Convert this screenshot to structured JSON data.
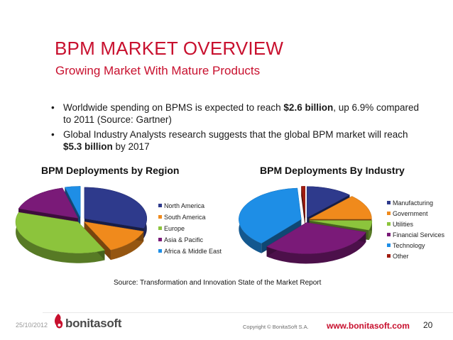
{
  "slide": {
    "title": "BPM MARKET OVERVIEW",
    "subtitle": "Growing Market With Mature Products",
    "bullets": [
      {
        "before": "Worldwide spending on BPMS is expected to reach ",
        "bold": "$2.6 billion",
        "after": ", up 6.9% compared to 2011 (Source: Gartner)"
      },
      {
        "before": "Global Industry Analysts research suggests that the global BPM market will reach ",
        "bold": "$5.3 billion",
        "after": " by 2017"
      }
    ],
    "bullet_glyph": "•",
    "source_note": "Source: Transformation and Innovation State of the Market Report"
  },
  "footer": {
    "date": "25/10/2012",
    "logo_text": "bonitasoft",
    "copyright": "Copyright © BonitaSoft S.A.",
    "website": "www.bonitasoft.com",
    "page_number": "20"
  },
  "colors": {
    "accent": "#c8102e",
    "north_america": "#2e3a8c",
    "south_america": "#f08a1c",
    "europe": "#8cc43c",
    "asia_pacific": "#7a1a78",
    "africa_middle_east": "#1e8ee6",
    "manufacturing": "#2e3a8c",
    "government": "#f08a1c",
    "utilities": "#8cc43c",
    "financial_services": "#7a1a78",
    "technology": "#1e8ee6",
    "other": "#a01c10"
  },
  "chart_data": [
    {
      "type": "pie",
      "title": "BPM Deployments by Region",
      "categories": [
        "North America",
        "South America",
        "Europe",
        "Asia & Pacific",
        "Africa & Middle East"
      ],
      "values": [
        30,
        13,
        37,
        16,
        4
      ],
      "colors": [
        "#2e3a8c",
        "#f08a1c",
        "#8cc43c",
        "#7a1a78",
        "#1e8ee6"
      ],
      "legend": "right"
    },
    {
      "type": "pie",
      "title": "BPM Deployments By Industry",
      "categories": [
        "Manufacturing",
        "Government",
        "Utilities",
        "Financial Services",
        "Technology",
        "Other"
      ],
      "values": [
        12,
        13,
        5,
        31,
        38,
        1
      ],
      "colors": [
        "#2e3a8c",
        "#f08a1c",
        "#8cc43c",
        "#7a1a78",
        "#1e8ee6",
        "#a01c10"
      ],
      "legend": "right"
    }
  ]
}
